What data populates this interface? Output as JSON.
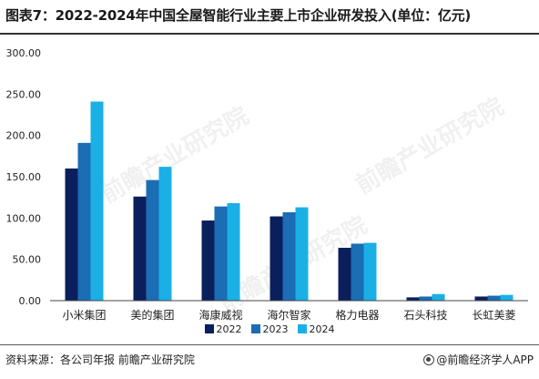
{
  "title": "图表7：2022-2024年中国全屋智能行业主要上市企业研发投入(单位：亿元)",
  "source": "资料来源：各公司年报 前瞻产业研究院",
  "brand": "@前瞻经济学人APP",
  "watermark": "前瞻产业研究院",
  "colors": {
    "2022": "#0b1f5c",
    "2023": "#1b6db4",
    "2024": "#1ab0e6"
  },
  "chart_data": {
    "type": "bar",
    "categories": [
      "小米集团",
      "美的集团",
      "海康威视",
      "海尔智家",
      "格力电器",
      "石头科技",
      "长虹美菱"
    ],
    "series": [
      {
        "name": "2022",
        "values": [
          160,
          126,
          97,
          102,
          64,
          4,
          5
        ]
      },
      {
        "name": "2023",
        "values": [
          191,
          146,
          114,
          107,
          69,
          5,
          6
        ]
      },
      {
        "name": "2024",
        "values": [
          241,
          162,
          118,
          113,
          70,
          8,
          7
        ]
      }
    ],
    "ylim": [
      0,
      300
    ],
    "yticks": [
      "0.00",
      "50.00",
      "100.00",
      "150.00",
      "200.00",
      "250.00",
      "300.00"
    ],
    "ytick_values": [
      0,
      50,
      100,
      150,
      200,
      250,
      300
    ],
    "legend_position": "bottom",
    "grid": false
  }
}
